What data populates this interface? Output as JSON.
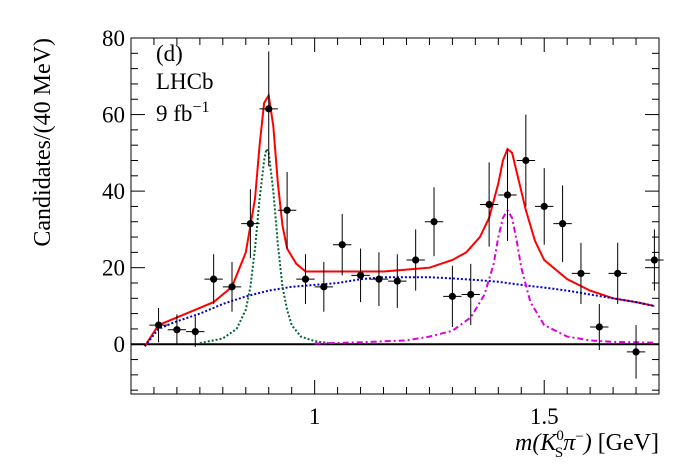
{
  "chart_data": {
    "type": "scatter",
    "title": "",
    "panel_label": "(d)",
    "experiment": "LHCb",
    "luminosity": {
      "base": "9 fb",
      "exponent": "−1"
    },
    "xlabel": {
      "m": "m(",
      "K": "K",
      "sup": "0",
      "sub": "S",
      "pi": "π",
      "piexp": "−",
      "close": ")",
      "unit": " [GeV]"
    },
    "ylabel": "Candidates/(40 MeV)",
    "xlim": [
      0.6,
      1.75
    ],
    "ylim": [
      -13,
      80
    ],
    "x_ticks": [
      {
        "value": 1.0,
        "label": "1"
      },
      {
        "value": 1.5,
        "label": "1.5"
      }
    ],
    "y_ticks": [
      {
        "value": 0,
        "label": "0"
      },
      {
        "value": 20,
        "label": "20"
      },
      {
        "value": 40,
        "label": "40"
      },
      {
        "value": 60,
        "label": "60"
      },
      {
        "value": 80,
        "label": "80"
      }
    ],
    "grid": false,
    "legend": "none",
    "zero_line": 0,
    "data_points": [
      {
        "x": 0.66,
        "y": 5.0,
        "yerr": 4.5
      },
      {
        "x": 0.7,
        "y": 3.8,
        "yerr": 4.0
      },
      {
        "x": 0.74,
        "y": 3.3,
        "yerr": 4.0
      },
      {
        "x": 0.78,
        "y": 17.0,
        "yerr": 6.5
      },
      {
        "x": 0.82,
        "y": 15.0,
        "yerr": 6.5
      },
      {
        "x": 0.86,
        "y": 31.5,
        "yerr": 9.0
      },
      {
        "x": 0.9,
        "y": 61.5,
        "yerr": 15.0
      },
      {
        "x": 0.94,
        "y": 35.0,
        "yerr": 10.0
      },
      {
        "x": 0.98,
        "y": 17.0,
        "yerr": 6.5
      },
      {
        "x": 1.02,
        "y": 15.0,
        "yerr": 6.5
      },
      {
        "x": 1.06,
        "y": 26.0,
        "yerr": 8.0
      },
      {
        "x": 1.1,
        "y": 18.0,
        "yerr": 7.0
      },
      {
        "x": 1.14,
        "y": 17.0,
        "yerr": 7.0
      },
      {
        "x": 1.18,
        "y": 16.5,
        "yerr": 7.0
      },
      {
        "x": 1.22,
        "y": 22.0,
        "yerr": 8.0
      },
      {
        "x": 1.26,
        "y": 32.0,
        "yerr": 9.0
      },
      {
        "x": 1.3,
        "y": 12.5,
        "yerr": 8.0
      },
      {
        "x": 1.34,
        "y": 13.0,
        "yerr": 8.0
      },
      {
        "x": 1.38,
        "y": 36.5,
        "yerr": 11.0
      },
      {
        "x": 1.42,
        "y": 39.0,
        "yerr": 12.0
      },
      {
        "x": 1.46,
        "y": 48.0,
        "yerr": 12.0
      },
      {
        "x": 1.5,
        "y": 36.0,
        "yerr": 10.0
      },
      {
        "x": 1.54,
        "y": 31.5,
        "yerr": 10.0
      },
      {
        "x": 1.58,
        "y": 18.5,
        "yerr": 8.0
      },
      {
        "x": 1.62,
        "y": 4.5,
        "yerr": 6.0
      },
      {
        "x": 1.66,
        "y": 18.5,
        "yerr": 8.0
      },
      {
        "x": 1.7,
        "y": -2.0,
        "yerr": 7.0
      },
      {
        "x": 1.74,
        "y": 22.0,
        "yerr": 8.0
      }
    ],
    "curves": [
      {
        "role": "total",
        "color": "#ff0000",
        "dash": "solid",
        "x": [
          0.63,
          0.66,
          0.7,
          0.74,
          0.78,
          0.82,
          0.85,
          0.87,
          0.88,
          0.89,
          0.9,
          0.91,
          0.92,
          0.93,
          0.94,
          0.96,
          0.98,
          1.0,
          1.05,
          1.1,
          1.15,
          1.2,
          1.25,
          1.3,
          1.33,
          1.36,
          1.38,
          1.4,
          1.41,
          1.42,
          1.43,
          1.44,
          1.46,
          1.48,
          1.5,
          1.55,
          1.6,
          1.65,
          1.7,
          1.74
        ],
        "y": [
          -0.5,
          5,
          7,
          9,
          11,
          15,
          24,
          38,
          52,
          63,
          65,
          57,
          42,
          31,
          25,
          21,
          19,
          19,
          19,
          19,
          19,
          19.5,
          20,
          22,
          24,
          28,
          33,
          42,
          48,
          51,
          50,
          45,
          35,
          27,
          22,
          17,
          14,
          12,
          11,
          10
        ]
      },
      {
        "role": "background",
        "color": "#0000cc",
        "dash": "dotted",
        "x": [
          0.63,
          0.66,
          0.7,
          0.75,
          0.8,
          0.85,
          0.9,
          0.95,
          1.0,
          1.05,
          1.1,
          1.15,
          1.2,
          1.25,
          1.3,
          1.35,
          1.4,
          1.45,
          1.5,
          1.55,
          1.6,
          1.65,
          1.7,
          1.74
        ],
        "y": [
          -0.5,
          4,
          6,
          8,
          10.5,
          12.5,
          14,
          15,
          15.5,
          16,
          17,
          17.5,
          17.5,
          17.5,
          17.2,
          16.8,
          16.3,
          15.5,
          14.8,
          14,
          13,
          12,
          11,
          10
        ]
      },
      {
        "role": "peak-1",
        "color": "#006633",
        "dash": "dotted",
        "x": [
          0.75,
          0.8,
          0.83,
          0.85,
          0.86,
          0.87,
          0.88,
          0.89,
          0.895,
          0.9,
          0.91,
          0.92,
          0.93,
          0.94,
          0.95,
          0.97,
          1.0,
          1.03
        ],
        "y": [
          0.3,
          1.5,
          4,
          9,
          15,
          25,
          38,
          48,
          51,
          50,
          40,
          26,
          15,
          9,
          5,
          2,
          0.8,
          0.3
        ]
      },
      {
        "role": "peak-2",
        "color": "#dd00dd",
        "dash": "dashdot",
        "x": [
          1.0,
          1.1,
          1.2,
          1.25,
          1.3,
          1.34,
          1.37,
          1.39,
          1.4,
          1.41,
          1.42,
          1.43,
          1.44,
          1.45,
          1.47,
          1.5,
          1.55,
          1.6,
          1.65,
          1.7,
          1.74
        ],
        "y": [
          0.2,
          0.5,
          1,
          2,
          3.5,
          7,
          13,
          21,
          28,
          33,
          35,
          33,
          27,
          20,
          11,
          5,
          2,
          1,
          0.6,
          0.5,
          0.4
        ]
      }
    ]
  }
}
